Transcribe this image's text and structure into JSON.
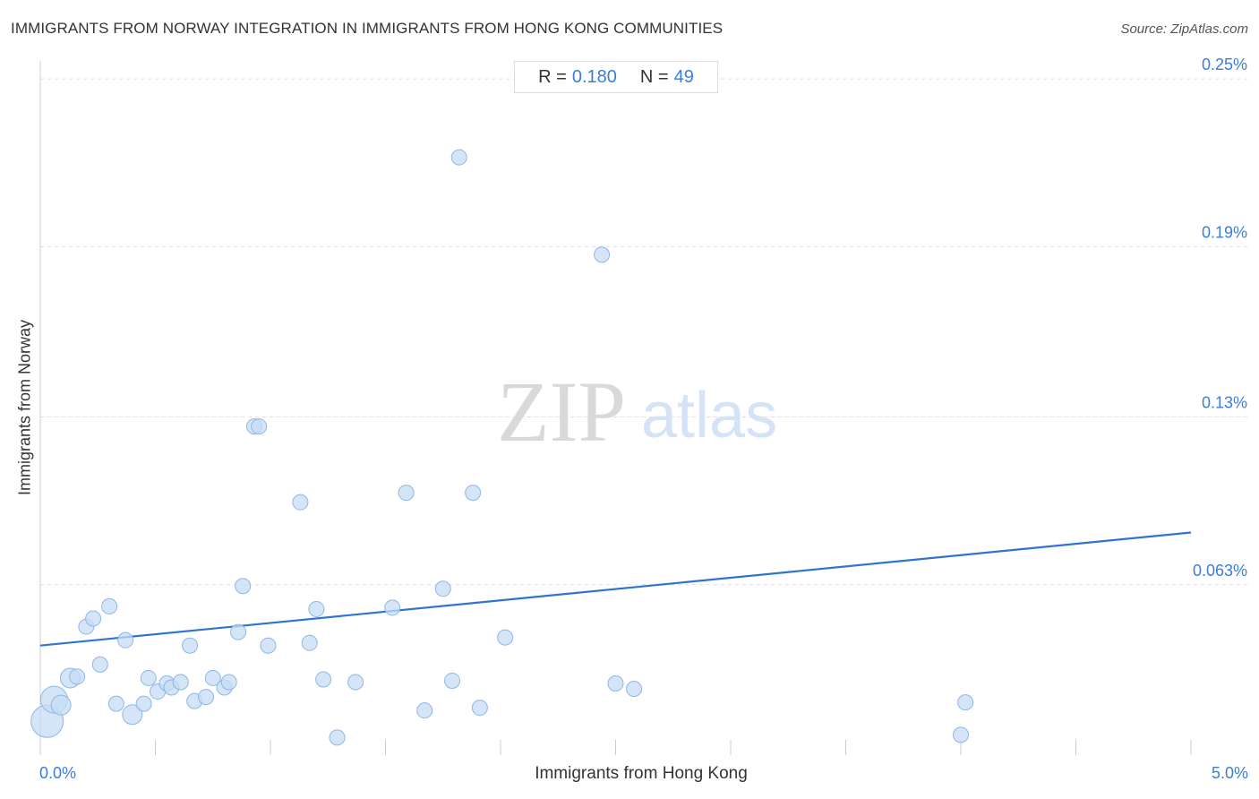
{
  "header": {
    "title": "IMMIGRANTS FROM NORWAY INTEGRATION IN IMMIGRANTS FROM HONG KONG COMMUNITIES",
    "source": "Source: ZipAtlas.com"
  },
  "stats": {
    "r_label": "R =",
    "r_value": "0.180",
    "n_label": "N =",
    "n_value": "49"
  },
  "watermark": {
    "part1": "ZIP",
    "part2": "atlas"
  },
  "colors": {
    "point_fill": "#c6dcf6",
    "point_stroke": "#8fb6e8",
    "trend_line": "#2f74d0",
    "tick_label": "#3b7dd8",
    "grid": "#dddddd"
  },
  "chart_data": {
    "type": "scatter",
    "title": "IMMIGRANTS FROM NORWAY INTEGRATION IN IMMIGRANTS FROM HONG KONG COMMUNITIES",
    "xlabel": "Immigrants from Hong Kong",
    "ylabel": "Immigrants from Norway",
    "xlim": [
      0,
      5.0
    ],
    "ylim": [
      0.0,
      0.256
    ],
    "x_tick_labels": [
      {
        "value": 0,
        "label": "0.0%"
      },
      {
        "value": 5.0,
        "label": "5.0%"
      }
    ],
    "y_ticks": [
      {
        "value": 0.063,
        "label": "0.063%"
      },
      {
        "value": 0.125,
        "label": "0.13%"
      },
      {
        "value": 0.188,
        "label": "0.19%"
      },
      {
        "value": 0.25,
        "label": "0.25%"
      }
    ],
    "grid": true,
    "trend_line": {
      "x": [
        0,
        5.0
      ],
      "y": [
        0.0405,
        0.0823
      ]
    },
    "points": [
      {
        "x": 0.03,
        "y": 0.0125,
        "size": "xl"
      },
      {
        "x": 0.06,
        "y": 0.0205,
        "size": "lg"
      },
      {
        "x": 0.09,
        "y": 0.0185,
        "size": "md"
      },
      {
        "x": 0.13,
        "y": 0.0285,
        "size": "md"
      },
      {
        "x": 0.16,
        "y": 0.029,
        "size": "sm"
      },
      {
        "x": 0.2,
        "y": 0.0475,
        "size": "sm"
      },
      {
        "x": 0.23,
        "y": 0.0505,
        "size": "sm"
      },
      {
        "x": 0.26,
        "y": 0.0335,
        "size": "sm"
      },
      {
        "x": 0.3,
        "y": 0.055,
        "size": "sm"
      },
      {
        "x": 0.33,
        "y": 0.019,
        "size": "sm"
      },
      {
        "x": 0.37,
        "y": 0.0425,
        "size": "sm"
      },
      {
        "x": 0.4,
        "y": 0.015,
        "size": "md"
      },
      {
        "x": 0.45,
        "y": 0.019,
        "size": "sm"
      },
      {
        "x": 0.47,
        "y": 0.0285,
        "size": "sm"
      },
      {
        "x": 0.51,
        "y": 0.0235,
        "size": "sm"
      },
      {
        "x": 0.55,
        "y": 0.0265,
        "size": "sm"
      },
      {
        "x": 0.57,
        "y": 0.025,
        "size": "sm"
      },
      {
        "x": 0.61,
        "y": 0.027,
        "size": "sm"
      },
      {
        "x": 0.65,
        "y": 0.0405,
        "size": "sm"
      },
      {
        "x": 0.67,
        "y": 0.02,
        "size": "sm"
      },
      {
        "x": 0.72,
        "y": 0.0215,
        "size": "sm"
      },
      {
        "x": 0.75,
        "y": 0.0285,
        "size": "sm"
      },
      {
        "x": 0.8,
        "y": 0.025,
        "size": "sm"
      },
      {
        "x": 0.82,
        "y": 0.027,
        "size": "sm"
      },
      {
        "x": 0.86,
        "y": 0.0455,
        "size": "sm"
      },
      {
        "x": 0.88,
        "y": 0.0625,
        "size": "sm"
      },
      {
        "x": 0.93,
        "y": 0.1215,
        "size": "sm"
      },
      {
        "x": 0.95,
        "y": 0.1215,
        "size": "sm"
      },
      {
        "x": 0.99,
        "y": 0.0405,
        "size": "sm"
      },
      {
        "x": 1.13,
        "y": 0.0935,
        "size": "sm"
      },
      {
        "x": 1.17,
        "y": 0.0415,
        "size": "sm"
      },
      {
        "x": 1.2,
        "y": 0.054,
        "size": "sm"
      },
      {
        "x": 1.23,
        "y": 0.028,
        "size": "sm"
      },
      {
        "x": 1.29,
        "y": 0.0065,
        "size": "sm"
      },
      {
        "x": 1.37,
        "y": 0.027,
        "size": "sm"
      },
      {
        "x": 1.53,
        "y": 0.0545,
        "size": "sm"
      },
      {
        "x": 1.59,
        "y": 0.097,
        "size": "sm"
      },
      {
        "x": 1.67,
        "y": 0.0165,
        "size": "sm"
      },
      {
        "x": 1.75,
        "y": 0.0615,
        "size": "sm"
      },
      {
        "x": 1.79,
        "y": 0.0275,
        "size": "sm"
      },
      {
        "x": 1.82,
        "y": 0.221,
        "size": "sm"
      },
      {
        "x": 1.88,
        "y": 0.097,
        "size": "sm"
      },
      {
        "x": 1.91,
        "y": 0.0175,
        "size": "sm"
      },
      {
        "x": 2.02,
        "y": 0.0435,
        "size": "sm"
      },
      {
        "x": 2.44,
        "y": 0.185,
        "size": "sm"
      },
      {
        "x": 2.5,
        "y": 0.0265,
        "size": "sm"
      },
      {
        "x": 2.58,
        "y": 0.0245,
        "size": "sm"
      },
      {
        "x": 4.0,
        "y": 0.0075,
        "size": "sm"
      },
      {
        "x": 4.02,
        "y": 0.0195,
        "size": "sm"
      }
    ]
  }
}
